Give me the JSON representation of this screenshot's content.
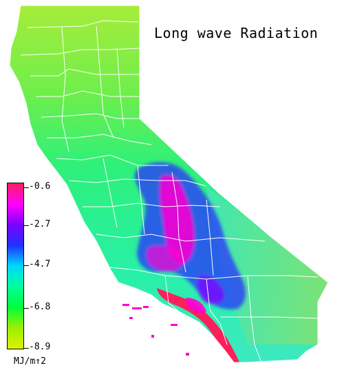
{
  "title": "Long wave Radiation",
  "legend": {
    "ticks": [
      "-0.6",
      "-2.7",
      "-4.7",
      "-6.8",
      "-8.9"
    ],
    "units": "MJ/m↑2",
    "gradient": [
      "#ff1f5a",
      "#ff00ff",
      "#7a00ff",
      "#2030ff",
      "#00d8ff",
      "#00ff9a",
      "#00ff3a",
      "#9af000",
      "#dcf000"
    ]
  },
  "colors": {
    "background": "#ffffff",
    "land_base": "#3cf090",
    "north": "#a6ec3a",
    "low_radiation_magenta": "#ff00d2",
    "low_radiation_blue": "#2a30ff",
    "coast_red": "#ff1f5a",
    "boundaries": "#ffffff"
  },
  "regions": [
    "county-boundaries",
    "sierra-nevada-low",
    "southern-coast-red",
    "channel-islands"
  ]
}
